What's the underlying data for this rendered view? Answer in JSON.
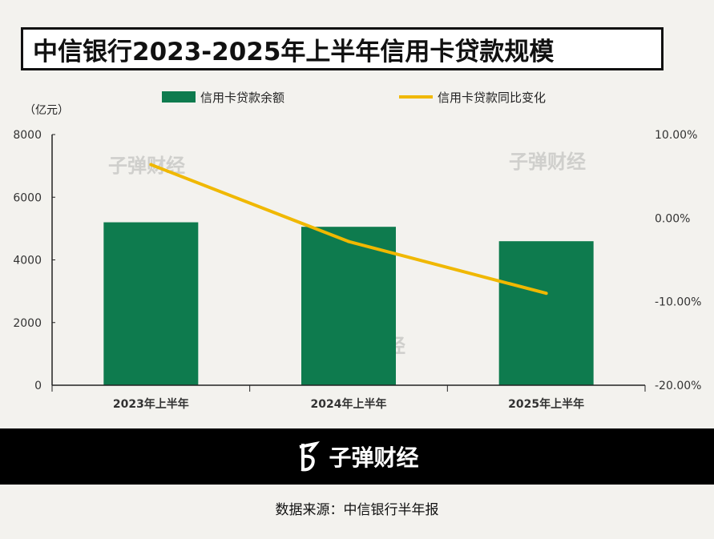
{
  "title": "中信银行2023-2025年上半年信用卡贷款规模",
  "watermark": "子弹财经",
  "footer": {
    "brand": "子弹财经",
    "source": "数据来源：中信银行半年报"
  },
  "colors": {
    "bar": "#0e7b4e",
    "line": "#f0b800"
  },
  "chart_data": {
    "type": "bar+line",
    "title": "中信银行2023-2025年上半年信用卡贷款规模",
    "unit_label": "（亿元）",
    "categories": [
      "2023年上半年",
      "2024年上半年",
      "2025年上半年"
    ],
    "series": [
      {
        "name": "信用卡贷款余额",
        "type": "bar",
        "axis": "left",
        "values": [
          5200,
          5056,
          4596
        ]
      },
      {
        "name": "信用卡贷款同比变化",
        "type": "line",
        "axis": "right",
        "values": [
          6.4,
          -2.8,
          -9.0
        ]
      }
    ],
    "left_axis": {
      "ylim": [
        0,
        8000
      ],
      "ticks": [
        "0",
        "2000",
        "4000",
        "6000",
        "8000"
      ]
    },
    "right_axis": {
      "ylim": [
        -20,
        10
      ],
      "ticks": [
        "-20.00%",
        "-10.00%",
        "0.00%",
        "10.00%"
      ]
    },
    "legend": "top-center",
    "grid": false
  }
}
